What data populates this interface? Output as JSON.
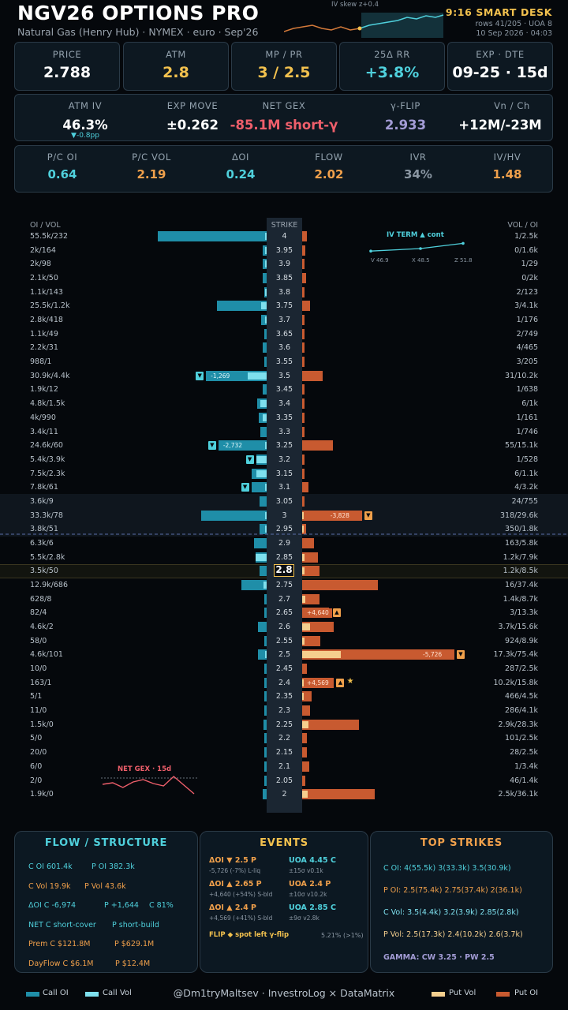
{
  "header": {
    "title": "NGV26 OPTIONS PRO",
    "subtitle": "Natural Gas (Henry Hub) · NYMEX · euro · Sep'26",
    "spark_label": "IV skew  z+0.4",
    "desk": "9:16 SMART DESK",
    "rows": "rows 41/205 · UOA 8",
    "date": "10 Sep 2026 · 04:03"
  },
  "stats_top": [
    {
      "label": "PRICE",
      "value": "2.788",
      "color": "#ffffff"
    },
    {
      "label": "ATM",
      "value": "2.8",
      "color": "#f2c14e"
    },
    {
      "label": "MP / PR",
      "value": "3 / 2.5",
      "color": "#f2c14e"
    },
    {
      "label": "25Δ RR",
      "value": "+3.8%",
      "color": "#4fd0dc"
    },
    {
      "label": "EXP · DTE",
      "value": "09-25 · 15d",
      "color": "#ffffff"
    }
  ],
  "stats_mid": [
    {
      "label": "ATM IV",
      "value": "46.3%",
      "sub": "▼-0.8pp",
      "color": "#ffffff"
    },
    {
      "label": "EXP MOVE",
      "value": "±0.262",
      "color": "#ffffff"
    },
    {
      "label": "NET GEX",
      "value": "-85.1M short-γ",
      "color": "#ef5f6b"
    },
    {
      "label": "γ-FLIP",
      "value": "2.933",
      "color": "#a39cd6"
    },
    {
      "label": "Vn / Ch",
      "value": "+12M/-23M",
      "color": "#ffffff"
    }
  ],
  "stats_low": [
    {
      "label": "P/C OI",
      "value": "0.64",
      "color": "#4fd0dc"
    },
    {
      "label": "P/C VOL",
      "value": "2.19",
      "color": "#f0a04b"
    },
    {
      "label": "ΔOI",
      "value": "0.24",
      "color": "#4fd0dc"
    },
    {
      "label": "FLOW",
      "value": "2.02",
      "color": "#f0a04b"
    },
    {
      "label": "IVR",
      "value": "34%",
      "color": "#8a96a2"
    },
    {
      "label": "IV/HV",
      "value": "1.48",
      "color": "#f0a04b"
    }
  ],
  "ladder": {
    "left_header": "OI / VOL",
    "strike_header": "STRIKE",
    "right_header": "VOL / OI",
    "atm_strike": "2.8",
    "rows": [
      {
        "strike": "4",
        "left": "55.5k/232",
        "right": "1/2.5k",
        "c_oi": 55.5,
        "c_vol": 0.232,
        "p_oi": 2.5,
        "p_vol": 0.001
      },
      {
        "strike": "3.95",
        "left": "2k/164",
        "right": "0/1.6k",
        "c_oi": 2,
        "c_vol": 0.164,
        "p_oi": 1.6,
        "p_vol": 0
      },
      {
        "strike": "3.9",
        "left": "2k/98",
        "right": "1/29",
        "c_oi": 2,
        "c_vol": 0.098,
        "p_oi": 0.029,
        "p_vol": 0.001
      },
      {
        "strike": "3.85",
        "left": "2.1k/50",
        "right": "0/2k",
        "c_oi": 2.1,
        "c_vol": 0.05,
        "p_oi": 2,
        "p_vol": 0
      },
      {
        "strike": "3.8",
        "left": "1.1k/143",
        "right": "2/123",
        "c_oi": 1.1,
        "c_vol": 0.143,
        "p_oi": 0.123,
        "p_vol": 0.002
      },
      {
        "strike": "3.75",
        "left": "25.5k/1.2k",
        "right": "3/4.1k",
        "c_oi": 25.5,
        "c_vol": 1.2,
        "p_oi": 4.1,
        "p_vol": 0.003
      },
      {
        "strike": "3.7",
        "left": "2.8k/418",
        "right": "1/176",
        "c_oi": 2.8,
        "c_vol": 0.418,
        "p_oi": 0.176,
        "p_vol": 0.001
      },
      {
        "strike": "3.65",
        "left": "1.1k/49",
        "right": "2/749",
        "c_oi": 1.1,
        "c_vol": 0.049,
        "p_oi": 0.749,
        "p_vol": 0.002
      },
      {
        "strike": "3.6",
        "left": "2.2k/31",
        "right": "4/465",
        "c_oi": 2.2,
        "c_vol": 0.031,
        "p_oi": 0.465,
        "p_vol": 0.004
      },
      {
        "strike": "3.55",
        "left": "988/1",
        "right": "3/205",
        "c_oi": 0.988,
        "c_vol": 0.001,
        "p_oi": 0.205,
        "p_vol": 0.003
      },
      {
        "strike": "3.5",
        "left": "30.9k/4.4k",
        "right": "31/10.2k",
        "c_oi": 30.9,
        "c_vol": 4.4,
        "p_oi": 10.2,
        "p_vol": 0.031,
        "c_delta": "-1,269",
        "c_dir": "down"
      },
      {
        "strike": "3.45",
        "left": "1.9k/12",
        "right": "1/638",
        "c_oi": 1.9,
        "c_vol": 0.012,
        "p_oi": 0.638,
        "p_vol": 0.001
      },
      {
        "strike": "3.4",
        "left": "4.8k/1.5k",
        "right": "6/1k",
        "c_oi": 4.8,
        "c_vol": 1.5,
        "p_oi": 1,
        "p_vol": 0.006
      },
      {
        "strike": "3.35",
        "left": "4k/990",
        "right": "1/161",
        "c_oi": 4,
        "c_vol": 0.99,
        "p_oi": 0.161,
        "p_vol": 0.001
      },
      {
        "strike": "3.3",
        "left": "3.4k/11",
        "right": "1/746",
        "c_oi": 3.4,
        "c_vol": 0.011,
        "p_oi": 0.746,
        "p_vol": 0.001
      },
      {
        "strike": "3.25",
        "left": "24.6k/60",
        "right": "55/15.1k",
        "c_oi": 24.6,
        "c_vol": 0.06,
        "p_oi": 15.1,
        "p_vol": 0.055,
        "c_delta": "-2,732",
        "c_dir": "down"
      },
      {
        "strike": "3.2",
        "left": "5.4k/3.9k",
        "right": "1/528",
        "c_oi": 5.4,
        "c_vol": 3.9,
        "p_oi": 0.528,
        "p_vol": 0.001,
        "c_dir": "down"
      },
      {
        "strike": "3.15",
        "left": "7.5k/2.3k",
        "right": "6/1.1k",
        "c_oi": 7.5,
        "c_vol": 2.3,
        "p_oi": 1.1,
        "p_vol": 0.006
      },
      {
        "strike": "3.1",
        "left": "7.8k/61",
        "right": "4/3.2k",
        "c_oi": 7.8,
        "c_vol": 0.061,
        "p_oi": 3.2,
        "p_vol": 0.004,
        "c_dir": "down"
      },
      {
        "strike": "3.05",
        "left": "3.6k/9",
        "right": "24/755",
        "c_oi": 3.6,
        "c_vol": 0.009,
        "p_oi": 0.755,
        "p_vol": 0.024,
        "band": true
      },
      {
        "strike": "3",
        "left": "33.3k/78",
        "right": "318/29.6k",
        "c_oi": 33.3,
        "c_vol": 0.078,
        "p_oi": 29.6,
        "p_vol": 0.318,
        "p_delta": "-3,828",
        "p_dir": "down",
        "band": true
      },
      {
        "strike": "2.95",
        "left": "3.8k/51",
        "right": "350/1.8k",
        "c_oi": 3.8,
        "c_vol": 0.051,
        "p_oi": 1.8,
        "p_vol": 0.35,
        "band": true
      },
      {
        "strike": "2.9",
        "left": "6.3k/6",
        "right": "163/5.8k",
        "c_oi": 6.3,
        "c_vol": 0.006,
        "p_oi": 5.8,
        "p_vol": 0.163
      },
      {
        "strike": "2.85",
        "left": "5.5k/2.8k",
        "right": "1.2k/7.9k",
        "c_oi": 5.5,
        "c_vol": 2.8,
        "p_oi": 7.9,
        "p_vol": 1.2
      },
      {
        "strike": "2.8",
        "left": "3.5k/50",
        "right": "1.2k/8.5k",
        "c_oi": 3.5,
        "c_vol": 0.05,
        "p_oi": 8.5,
        "p_vol": 1.2,
        "atm": true
      },
      {
        "strike": "2.75",
        "left": "12.9k/686",
        "right": "16/37.4k",
        "c_oi": 12.9,
        "c_vol": 0.686,
        "p_oi": 37.4,
        "p_vol": 0.016
      },
      {
        "strike": "2.7",
        "left": "628/8",
        "right": "1.4k/8.7k",
        "c_oi": 0.628,
        "c_vol": 0.008,
        "p_oi": 8.7,
        "p_vol": 1.4
      },
      {
        "strike": "2.65",
        "left": "82/4",
        "right": "3/13.3k",
        "c_oi": 0.082,
        "c_vol": 0.004,
        "p_oi": 13.3,
        "p_vol": 0.003,
        "p_delta": "+4,640",
        "p_dir": "up"
      },
      {
        "strike": "2.6",
        "left": "4.6k/2",
        "right": "3.7k/15.6k",
        "c_oi": 4.6,
        "c_vol": 0.002,
        "p_oi": 15.6,
        "p_vol": 3.7
      },
      {
        "strike": "2.55",
        "left": "58/0",
        "right": "924/8.9k",
        "c_oi": 0.058,
        "c_vol": 0,
        "p_oi": 8.9,
        "p_vol": 0.924
      },
      {
        "strike": "2.5",
        "left": "4.6k/101",
        "right": "17.3k/75.4k",
        "c_oi": 4.6,
        "c_vol": 0.101,
        "p_oi": 75.4,
        "p_vol": 17.3,
        "p_delta": "-5,726",
        "p_dir": "down"
      },
      {
        "strike": "2.45",
        "left": "10/0",
        "right": "287/2.5k",
        "c_oi": 0.01,
        "c_vol": 0,
        "p_oi": 2.5,
        "p_vol": 0.287
      },
      {
        "strike": "2.4",
        "left": "163/1",
        "right": "10.2k/15.8k",
        "c_oi": 0.163,
        "c_vol": 0.001,
        "p_oi": 15.8,
        "p_vol": 10.2,
        "p_delta": "+4,569",
        "p_dir": "up",
        "star": "★"
      },
      {
        "strike": "2.35",
        "left": "5/1",
        "right": "466/4.5k",
        "c_oi": 0.005,
        "c_vol": 0.001,
        "p_oi": 4.5,
        "p_vol": 0.466
      },
      {
        "strike": "2.3",
        "left": "11/0",
        "right": "286/4.1k",
        "c_oi": 0.011,
        "c_vol": 0,
        "p_oi": 4.1,
        "p_vol": 0.286
      },
      {
        "strike": "2.25",
        "left": "1.5k/0",
        "right": "2.9k/28.3k",
        "c_oi": 1.5,
        "c_vol": 0,
        "p_oi": 28.3,
        "p_vol": 2.9
      },
      {
        "strike": "2.2",
        "left": "5/0",
        "right": "101/2.5k",
        "c_oi": 0.005,
        "c_vol": 0,
        "p_oi": 2.5,
        "p_vol": 0.101
      },
      {
        "strike": "2.15",
        "left": "20/0",
        "right": "28/2.5k",
        "c_oi": 0.02,
        "c_vol": 0,
        "p_oi": 2.5,
        "p_vol": 0.028
      },
      {
        "strike": "2.1",
        "left": "6/0",
        "right": "1/3.4k",
        "c_oi": 0.006,
        "c_vol": 0,
        "p_oi": 3.4,
        "p_vol": 0.001
      },
      {
        "strike": "2.05",
        "left": "2/0",
        "right": "46/1.4k",
        "c_oi": 0.002,
        "c_vol": 0,
        "p_oi": 1.4,
        "p_vol": 0.046
      },
      {
        "strike": "2",
        "left": "1.9k/0",
        "right": "2.5k/36.1k",
        "c_oi": 1.9,
        "c_vol": 0,
        "p_oi": 36.1,
        "p_vol": 2.5
      }
    ],
    "iv_term": {
      "label": "IV TERM  ▲ cont",
      "points": [
        {
          "name": "V 46.9",
          "iv": 46.9
        },
        {
          "name": "X 48.5",
          "iv": 48.5
        },
        {
          "name": "Z 51.8",
          "iv": 51.8
        }
      ]
    },
    "net_gex": {
      "label": "NET GEX · 15d",
      "series": [
        -20,
        -18,
        -24,
        -17,
        -14,
        -19,
        -22,
        -10,
        -21,
        -32
      ]
    }
  },
  "panels": {
    "flow": {
      "title": "FLOW / STRUCTURE",
      "lines": [
        {
          "a": "C OI 601.4k",
          "b": "P OI 382.3k"
        },
        {
          "a": "C Vol 19.9k",
          "b": "P Vol 43.6k"
        },
        {
          "a": "ΔOI C -6,974",
          "b": "P +1,644",
          "c": "C 81%"
        },
        {
          "a": "NET  C short-cover",
          "b": "P short-build"
        },
        {
          "a": "Prem  C $121.8M",
          "b": "P $629.1M"
        },
        {
          "a": "DayFlow  C $6.1M",
          "b": "P $12.4M"
        }
      ]
    },
    "events": {
      "title": "EVENTS",
      "items": [
        {
          "main": "ΔOI ▼ 2.5 P",
          "sub": "-5,726 (-7%)  L-liq",
          "color": "#f0a04b"
        },
        {
          "main": "UOA 4.45 C",
          "sub": "±15σ v0.1k",
          "color": "#4fd0dc"
        },
        {
          "main": "ΔOI ▲ 2.65 P",
          "sub": "+4,640 (+54%)  S-bld",
          "color": "#f0a04b"
        },
        {
          "main": "UOA 2.4 P",
          "sub": "±10σ v10.2k",
          "color": "#f0a04b"
        },
        {
          "main": "ΔOI ▲ 2.4 P",
          "sub": "+4,569 (+41%)  S-bld",
          "color": "#f0a04b"
        },
        {
          "main": "UOA 2.85 C",
          "sub": "±9σ v2.8k",
          "color": "#4fd0dc"
        }
      ],
      "flip": "FLIP ◆ spot left γ-flip",
      "flip_pct": "5.21% (>1%)"
    },
    "top": {
      "title": "TOP STRIKES",
      "lines": [
        {
          "text": "C OI: 4(55.5k)  3(33.3k)  3.5(30.9k)",
          "color": "#4fd0dc"
        },
        {
          "text": "P OI: 2.5(75.4k)  2.75(37.4k)  2(36.1k)",
          "color": "#f0a04b"
        },
        {
          "text": "C Vol: 3.5(4.4k)  3.2(3.9k)  2.85(2.8k)",
          "color": "#7ee0ee"
        },
        {
          "text": "P Vol: 2.5(17.3k)  2.4(10.2k)  2.6(3.7k)",
          "color": "#f5cf8e"
        },
        {
          "text": "GAMMA: CW 3.25 · PW 2.5",
          "color": "#a39cd6"
        }
      ]
    }
  },
  "footer": {
    "legend": [
      {
        "label": "Call OI",
        "color": "#1f8ea8"
      },
      {
        "label": "Call Vol",
        "color": "#7ee0ee"
      },
      {
        "label": "Put Vol",
        "color": "#f5cf8e"
      },
      {
        "label": "Put OI",
        "color": "#c85a30"
      }
    ],
    "credit": "@Dm1tryMaltsev  ·  InvestroLog × DataMatrix"
  }
}
